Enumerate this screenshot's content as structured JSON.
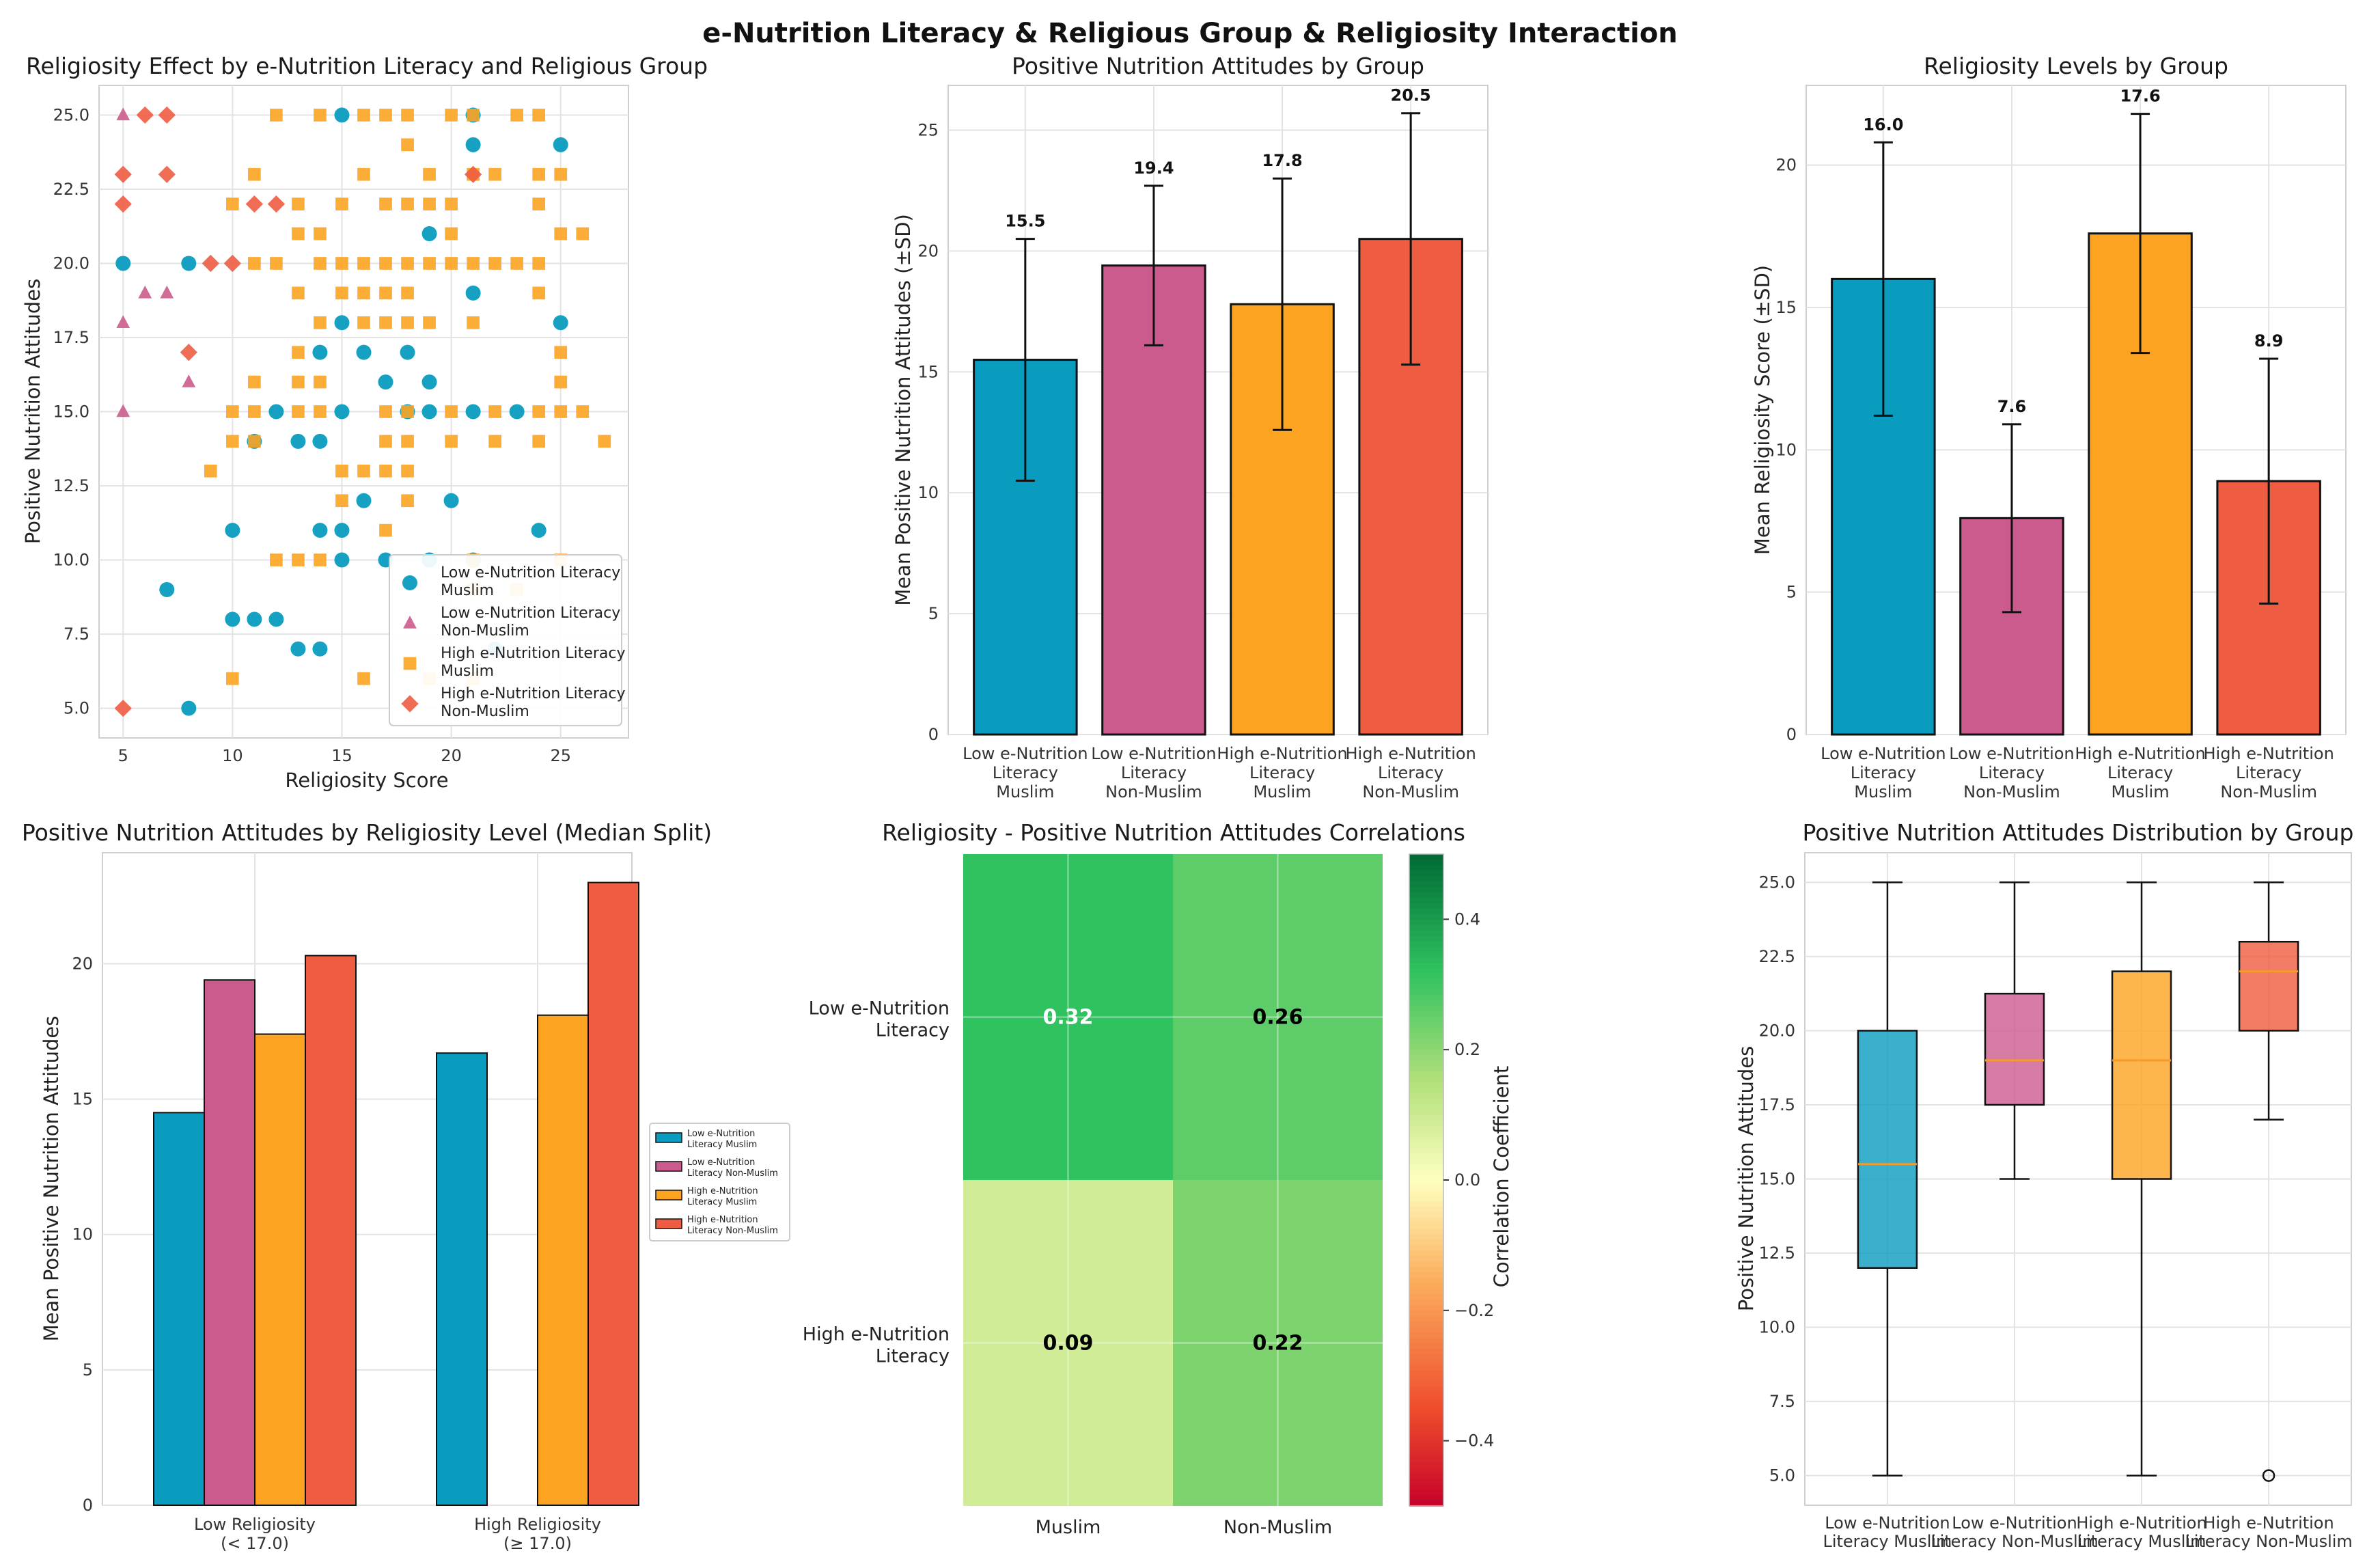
{
  "suptitle": "e-Nutrition Literacy & Religious Group & Religiosity Interaction",
  "colors": {
    "low_muslim": "#0a9cbf",
    "low_nonmuslim": "#cc5b8d",
    "high_muslim": "#fca422",
    "high_nonmuslim": "#ee5c41",
    "median": "#f49b2c"
  },
  "chart_data": [
    {
      "type": "scatter",
      "title": "Religiosity Effect by e-Nutrition Literacy and Religious Group",
      "xlabel": "Religiosity Score",
      "ylabel": "Positive Nutrition Attitudes",
      "xlim": [
        3.9,
        28.1
      ],
      "ylim": [
        4.0,
        26.0
      ],
      "xticks": [
        "5",
        "10",
        "15",
        "20",
        "25"
      ],
      "yticks": [
        "5.0",
        "7.5",
        "10.0",
        "12.5",
        "15.0",
        "17.5",
        "20.0",
        "22.5",
        "25.0"
      ],
      "legend": [
        {
          "line1": "Low e-Nutrition Literacy",
          "line2": "Muslim"
        },
        {
          "line1": "Low e-Nutrition Literacy",
          "line2": "Non-Muslim"
        },
        {
          "line1": "High e-Nutrition Literacy",
          "line2": "Muslim"
        },
        {
          "line1": "High e-Nutrition Literacy",
          "line2": "Non-Muslim"
        }
      ],
      "series": [
        {
          "name": "Low e-Nutrition Literacy Muslim",
          "marker": "circle",
          "points": [
            [
              5,
              20
            ],
            [
              7,
              9
            ],
            [
              8,
              20
            ],
            [
              8,
              5
            ],
            [
              10,
              11
            ],
            [
              10,
              8
            ],
            [
              11,
              14
            ],
            [
              11,
              8
            ],
            [
              12,
              15
            ],
            [
              12,
              8
            ],
            [
              13,
              14
            ],
            [
              13,
              7
            ],
            [
              14,
              17
            ],
            [
              14,
              14
            ],
            [
              14,
              11
            ],
            [
              14,
              7
            ],
            [
              15,
              25
            ],
            [
              15,
              18
            ],
            [
              15,
              15
            ],
            [
              15,
              11
            ],
            [
              15,
              10
            ],
            [
              16,
              17
            ],
            [
              16,
              12
            ],
            [
              17,
              16
            ],
            [
              17,
              10
            ],
            [
              18,
              17
            ],
            [
              18,
              15
            ],
            [
              19,
              16
            ],
            [
              19,
              15
            ],
            [
              19,
              10
            ],
            [
              19,
              21
            ],
            [
              20,
              12
            ],
            [
              21,
              25
            ],
            [
              21,
              24
            ],
            [
              21,
              19
            ],
            [
              21,
              15
            ],
            [
              21,
              10
            ],
            [
              22,
              7
            ],
            [
              23,
              15
            ],
            [
              24,
              11
            ],
            [
              25,
              24
            ],
            [
              25,
              18
            ]
          ]
        },
        {
          "name": "Low e-Nutrition Literacy Non-Muslim",
          "marker": "triangle",
          "points": [
            [
              5,
              25
            ],
            [
              5,
              18
            ],
            [
              5,
              15
            ],
            [
              6,
              19
            ],
            [
              7,
              19
            ],
            [
              8,
              16
            ]
          ]
        },
        {
          "name": "High e-Nutrition Literacy Muslim",
          "marker": "square",
          "points": [
            [
              10,
              22
            ],
            [
              10,
              15
            ],
            [
              10,
              14
            ],
            [
              10,
              6
            ],
            [
              11,
              23
            ],
            [
              11,
              20
            ],
            [
              11,
              16
            ],
            [
              11,
              15
            ],
            [
              11,
              14
            ],
            [
              12,
              25
            ],
            [
              12,
              20
            ],
            [
              12,
              10
            ],
            [
              13,
              22
            ],
            [
              13,
              21
            ],
            [
              13,
              19
            ],
            [
              13,
              17
            ],
            [
              13,
              16
            ],
            [
              13,
              15
            ],
            [
              13,
              10
            ],
            [
              14,
              25
            ],
            [
              14,
              21
            ],
            [
              14,
              20
            ],
            [
              14,
              18
            ],
            [
              14,
              16
            ],
            [
              14,
              15
            ],
            [
              14,
              10
            ],
            [
              15,
              22
            ],
            [
              15,
              20
            ],
            [
              15,
              19
            ],
            [
              15,
              13
            ],
            [
              15,
              12
            ],
            [
              16,
              25
            ],
            [
              16,
              23
            ],
            [
              16,
              20
            ],
            [
              16,
              19
            ],
            [
              16,
              18
            ],
            [
              16,
              13
            ],
            [
              16,
              6
            ],
            [
              17,
              25
            ],
            [
              17,
              22
            ],
            [
              17,
              20
            ],
            [
              17,
              19
            ],
            [
              17,
              18
            ],
            [
              17,
              15
            ],
            [
              17,
              14
            ],
            [
              17,
              13
            ],
            [
              17,
              11
            ],
            [
              18,
              25
            ],
            [
              18,
              24
            ],
            [
              18,
              22
            ],
            [
              18,
              20
            ],
            [
              18,
              19
            ],
            [
              18,
              18
            ],
            [
              18,
              15
            ],
            [
              18,
              14
            ],
            [
              18,
              13
            ],
            [
              18,
              12
            ],
            [
              19,
              23
            ],
            [
              19,
              22
            ],
            [
              19,
              20
            ],
            [
              19,
              18
            ],
            [
              19,
              6
            ],
            [
              20,
              25
            ],
            [
              20,
              22
            ],
            [
              20,
              21
            ],
            [
              20,
              20
            ],
            [
              20,
              15
            ],
            [
              20,
              14
            ],
            [
              21,
              25
            ],
            [
              21,
              23
            ],
            [
              21,
              20
            ],
            [
              21,
              18
            ],
            [
              21,
              10
            ],
            [
              21,
              9
            ],
            [
              21,
              6
            ],
            [
              22,
              23
            ],
            [
              22,
              20
            ],
            [
              22,
              15
            ],
            [
              22,
              14
            ],
            [
              23,
              25
            ],
            [
              23,
              20
            ],
            [
              23,
              9
            ],
            [
              24,
              25
            ],
            [
              24,
              23
            ],
            [
              24,
              22
            ],
            [
              24,
              20
            ],
            [
              24,
              19
            ],
            [
              24,
              15
            ],
            [
              24,
              14
            ],
            [
              25,
              23
            ],
            [
              25,
              21
            ],
            [
              25,
              17
            ],
            [
              25,
              16
            ],
            [
              25,
              15
            ],
            [
              25,
              10
            ],
            [
              26,
              21
            ],
            [
              26,
              15
            ],
            [
              27,
              14
            ],
            [
              9,
              13
            ]
          ]
        },
        {
          "name": "High e-Nutrition Literacy Non-Muslim",
          "marker": "diamond",
          "points": [
            [
              5,
              23
            ],
            [
              5,
              22
            ],
            [
              5,
              5
            ],
            [
              6,
              25
            ],
            [
              7,
              25
            ],
            [
              7,
              23
            ],
            [
              8,
              17
            ],
            [
              9,
              20
            ],
            [
              10,
              20
            ],
            [
              11,
              22
            ],
            [
              12,
              22
            ],
            [
              21,
              23
            ]
          ]
        }
      ]
    },
    {
      "type": "bar",
      "title": "Positive Nutrition Attitudes by Group",
      "ylabel": "Mean Positive Nutrition Attitudes (±SD)",
      "ylim": [
        0,
        26.85
      ],
      "yticks": [
        "0",
        "5",
        "10",
        "15",
        "20",
        "25"
      ],
      "categories": [
        [
          "Low e-Nutrition",
          "Literacy",
          "Muslim"
        ],
        [
          "Low e-Nutrition",
          "Literacy",
          "Non-Muslim"
        ],
        [
          "High e-Nutrition",
          "Literacy",
          "Muslim"
        ],
        [
          "High e-Nutrition",
          "Literacy",
          "Non-Muslim"
        ]
      ],
      "values": [
        15.5,
        19.4,
        17.8,
        20.5
      ],
      "sd": [
        5.0,
        3.3,
        5.2,
        5.2
      ],
      "labels": [
        "15.5",
        "19.4",
        "17.8",
        "20.5"
      ]
    },
    {
      "type": "bar",
      "title": "Religiosity Levels by Group",
      "ylabel": "Mean Religiosity Score (±SD)",
      "ylim": [
        0,
        22.8
      ],
      "yticks": [
        "0",
        "5",
        "10",
        "15",
        "20"
      ],
      "categories": [
        [
          "Low e-Nutrition",
          "Literacy",
          "Muslim"
        ],
        [
          "Low e-Nutrition",
          "Literacy",
          "Non-Muslim"
        ],
        [
          "High e-Nutrition",
          "Literacy",
          "Muslim"
        ],
        [
          "High e-Nutrition",
          "Literacy",
          "Non-Muslim"
        ]
      ],
      "values": [
        16.0,
        7.6,
        17.6,
        8.9
      ],
      "sd": [
        4.8,
        3.3,
        4.2,
        4.3
      ],
      "labels": [
        "16.0",
        "7.6",
        "17.6",
        "8.9"
      ]
    },
    {
      "type": "bar",
      "title": "Positive Nutrition Attitudes by Religiosity Level (Median Split)",
      "ylabel": "Mean Positive Nutrition Attitudes",
      "ylim": [
        0,
        24.1
      ],
      "yticks": [
        "0",
        "5",
        "10",
        "15",
        "20"
      ],
      "categories": [
        [
          "Low Religiosity",
          "(< 17.0)"
        ],
        [
          "High Religiosity",
          "(≥ 17.0)"
        ]
      ],
      "series": [
        {
          "name": "Low e-Nutrition Literacy Muslim",
          "legend": [
            "Low e-Nutrition",
            "Literacy Muslim"
          ],
          "values": [
            14.5,
            16.7
          ]
        },
        {
          "name": "Low e-Nutrition Literacy Non-Muslim",
          "legend": [
            "Low e-Nutrition",
            "Literacy Non-Muslim"
          ],
          "values": [
            19.4,
            0
          ]
        },
        {
          "name": "High e-Nutrition Literacy Muslim",
          "legend": [
            "High e-Nutrition",
            "Literacy Muslim"
          ],
          "values": [
            17.4,
            18.1
          ]
        },
        {
          "name": "High e-Nutrition Literacy Non-Muslim",
          "legend": [
            "High e-Nutrition",
            "Literacy Non-Muslim"
          ],
          "values": [
            20.3,
            23.0
          ]
        }
      ]
    },
    {
      "type": "heatmap",
      "title": "Religiosity - Positive Nutrition Attitudes Correlations",
      "rows": [
        [
          "Low e-Nutrition",
          "Literacy"
        ],
        [
          "High e-Nutrition",
          "Literacy"
        ]
      ],
      "cols": [
        "Muslim",
        "Non-Muslim"
      ],
      "values": [
        [
          0.32,
          0.26
        ],
        [
          0.09,
          0.22
        ]
      ],
      "labels": [
        [
          "0.32",
          "0.26"
        ],
        [
          "0.09",
          "0.22"
        ]
      ],
      "colorbar": {
        "label": "Correlation Coefficient",
        "range": [
          -0.5,
          0.5
        ],
        "ticks": [
          "0.4",
          "0.2",
          "0.0",
          "−0.2",
          "−0.4"
        ]
      }
    },
    {
      "type": "box",
      "title": "Positive Nutrition Attitudes Distribution by Group",
      "ylabel": "Positive Nutrition Attitudes",
      "ylim": [
        4.0,
        26.0
      ],
      "yticks": [
        "5.0",
        "7.5",
        "10.0",
        "12.5",
        "15.0",
        "17.5",
        "20.0",
        "22.5",
        "25.0"
      ],
      "categories": [
        [
          "Low e-Nutrition",
          "Literacy Muslim"
        ],
        [
          "Low e-Nutrition",
          "Literacy Non-Muslim"
        ],
        [
          "High e-Nutrition",
          "Literacy Muslim"
        ],
        [
          "High e-Nutrition",
          "Literacy Non-Muslim"
        ]
      ],
      "boxes": [
        {
          "min": 5,
          "q1": 12,
          "median": 15.5,
          "q3": 20,
          "max": 25,
          "outliers": []
        },
        {
          "min": 15,
          "q1": 17.5,
          "median": 19,
          "q3": 21.25,
          "max": 25,
          "outliers": []
        },
        {
          "min": 5,
          "q1": 15,
          "median": 19,
          "q3": 22,
          "max": 25,
          "outliers": []
        },
        {
          "min": 17,
          "q1": 20,
          "median": 22,
          "q3": 23,
          "max": 25,
          "outliers": [
            5
          ]
        }
      ]
    }
  ]
}
